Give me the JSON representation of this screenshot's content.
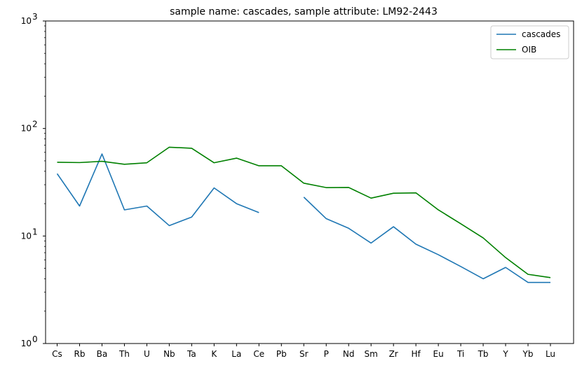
{
  "chart_data": {
    "type": "line",
    "title": "sample name: cascades, sample attribute: LM92-2443",
    "xlabel": "",
    "ylabel": "",
    "yscale": "log",
    "ylim": [
      1,
      1000
    ],
    "y_tick_labels": [
      "10",
      "10",
      "10",
      "10"
    ],
    "y_tick_exponents": [
      "0",
      "1",
      "2",
      "3"
    ],
    "y_tick_values": [
      1,
      10,
      100,
      1000
    ],
    "grid": false,
    "legend_position": "top-right",
    "categories": [
      "Cs",
      "Rb",
      "Ba",
      "Th",
      "U",
      "Nb",
      "Ta",
      "K",
      "La",
      "Ce",
      "Pb",
      "Sr",
      "P",
      "Nd",
      "Sm",
      "Zr",
      "Hf",
      "Eu",
      "Ti",
      "Tb",
      "Y",
      "Yb",
      "Lu"
    ],
    "series": [
      {
        "name": "cascades",
        "color": "#1f77b4",
        "values": [
          38,
          19,
          58,
          17.5,
          19,
          12.5,
          15,
          28,
          20,
          16.5,
          null,
          23,
          14.5,
          11.8,
          8.6,
          12.2,
          8.4,
          6.7,
          5.2,
          4.0,
          5.1,
          3.7,
          3.7
        ]
      },
      {
        "name": "OIB",
        "color": "#008000",
        "values": [
          48.5,
          48.2,
          49.5,
          46.5,
          48,
          67,
          65.5,
          48,
          53,
          45,
          45,
          31,
          28.2,
          28.3,
          22.5,
          25,
          25.2,
          17.5,
          13,
          9.6,
          6.3,
          4.4,
          4.1
        ]
      }
    ]
  }
}
